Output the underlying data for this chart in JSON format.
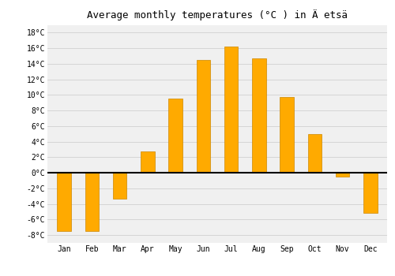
{
  "months": [
    "Jan",
    "Feb",
    "Mar",
    "Apr",
    "May",
    "Jun",
    "Jul",
    "Aug",
    "Sep",
    "Oct",
    "Nov",
    "Dec"
  ],
  "values": [
    -7.5,
    -7.5,
    -3.3,
    2.7,
    9.5,
    14.5,
    16.2,
    14.7,
    9.7,
    5.0,
    -0.5,
    -5.2
  ],
  "bar_color": "#FFAA00",
  "bar_edge_color": "#CC8800",
  "title": "Average monthly temperatures (°C ) in Ä etsä",
  "ylim": [
    -9,
    19
  ],
  "yticks": [
    -8,
    -6,
    -4,
    -2,
    0,
    2,
    4,
    6,
    8,
    10,
    12,
    14,
    16,
    18
  ],
  "background_color": "#ffffff",
  "plot_bg_color": "#f0f0f0",
  "grid_color": "#d0d0d0",
  "zero_line_color": "#000000",
  "title_fontsize": 9,
  "tick_fontsize": 7,
  "bar_width": 0.5
}
